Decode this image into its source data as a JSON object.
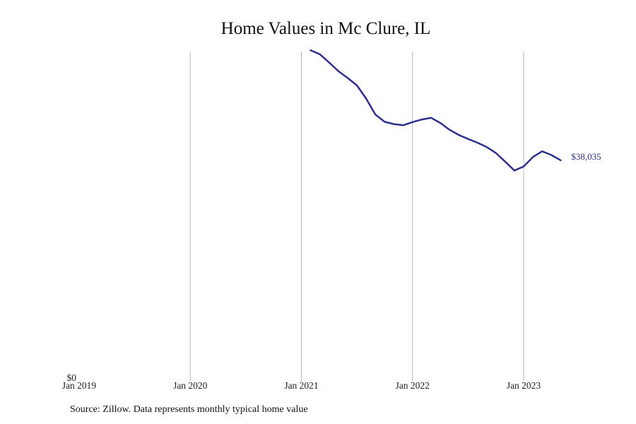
{
  "chart_data": {
    "type": "line",
    "title": "Home Values in Mc Clure, IL",
    "source": "Source: Zillow. Data represents monthly typical home value",
    "x_tick_labels": [
      "Jan 2019",
      "Jan 2020",
      "Jan 2021",
      "Jan 2022",
      "Jan 2023"
    ],
    "y_tick_labels": [
      "$0"
    ],
    "ylim": [
      0,
      58000
    ],
    "xlim": [
      "2019-01",
      "2023-12"
    ],
    "grid": "vertical",
    "line_color": "#2e2e8f",
    "end_label": "$38,035",
    "series": [
      {
        "x": [
          "2021-02",
          "2021-03",
          "2021-04",
          "2021-05",
          "2021-06",
          "2021-07",
          "2021-08",
          "2021-09",
          "2021-10",
          "2021-11",
          "2021-12",
          "2022-01",
          "2022-02",
          "2022-03",
          "2022-04",
          "2022-05",
          "2022-06",
          "2022-07",
          "2022-08",
          "2022-09",
          "2022-10",
          "2022-11",
          "2022-12",
          "2023-01",
          "2023-02",
          "2023-03",
          "2023-04",
          "2023-05"
        ],
        "y": [
          57250,
          56550,
          55100,
          53600,
          52400,
          51100,
          48800,
          46000,
          44750,
          44350,
          44150,
          44700,
          45150,
          45450,
          44550,
          43350,
          42450,
          41750,
          41100,
          40350,
          39300,
          37800,
          36250,
          36950,
          38600,
          39600,
          38950,
          38035
        ]
      }
    ]
  }
}
